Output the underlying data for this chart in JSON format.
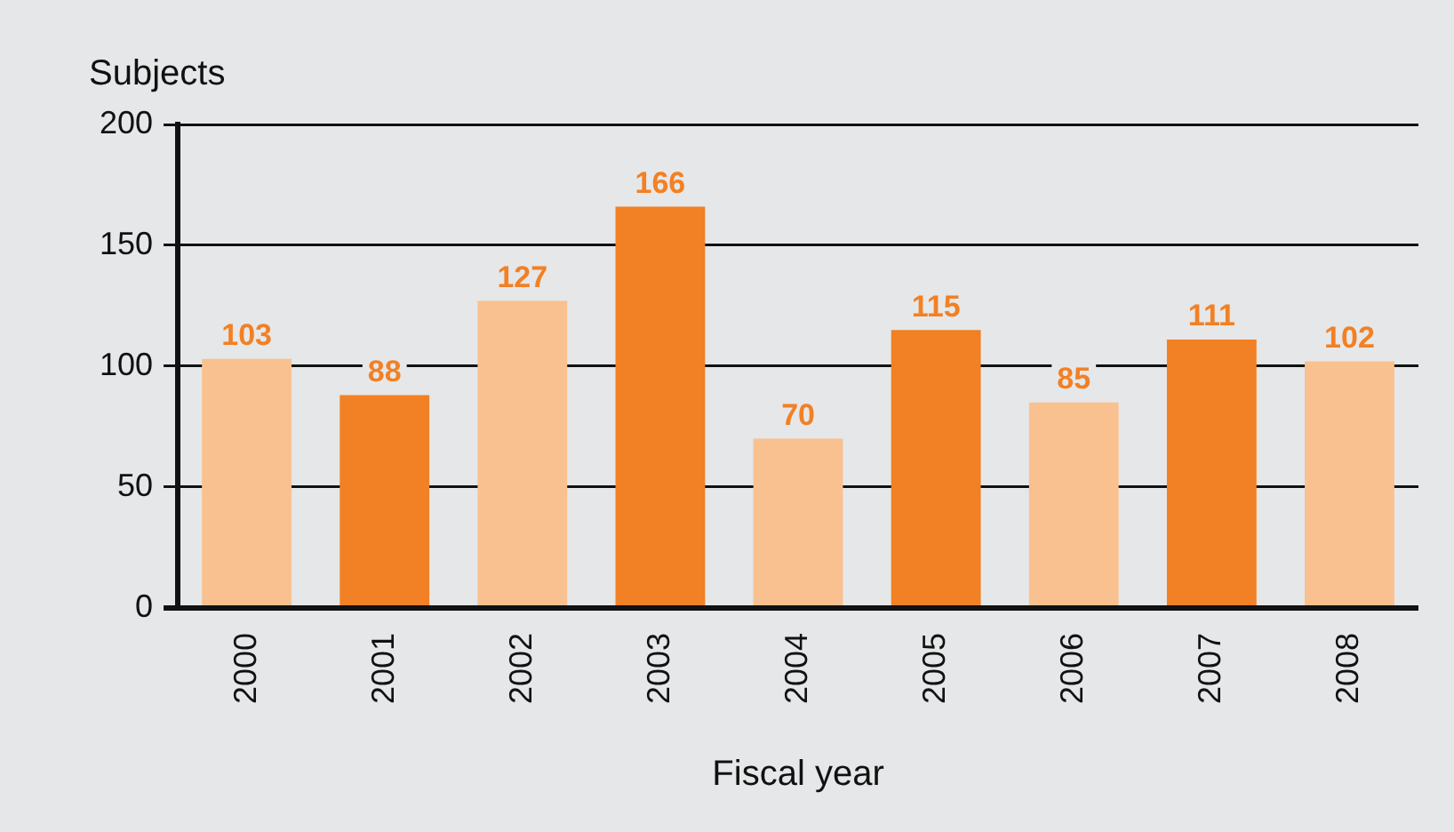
{
  "chart_data": {
    "type": "bar",
    "ylabel": "Subjects",
    "xlabel": "Fiscal year",
    "categories": [
      "2000",
      "2001",
      "2002",
      "2003",
      "2004",
      "2005",
      "2006",
      "2007",
      "2008"
    ],
    "values": [
      103,
      88,
      127,
      166,
      70,
      115,
      85,
      111,
      102
    ],
    "colors": [
      "#f9c18f",
      "#f28024",
      "#f9c18f",
      "#f28024",
      "#f9c18f",
      "#f28024",
      "#f9c18f",
      "#f28024",
      "#f9c18f"
    ],
    "ylim": [
      0,
      200
    ],
    "yticks": [
      0,
      50,
      100,
      150,
      200
    ],
    "grid": "y",
    "data_labels": true,
    "legend": false
  }
}
